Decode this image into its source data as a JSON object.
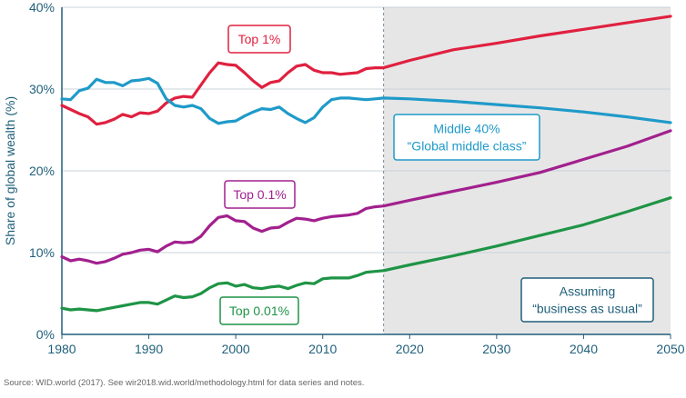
{
  "chart_data": {
    "type": "line",
    "title": "",
    "xlabel": "",
    "ylabel": "Share of global wealth (%)",
    "xlim": [
      1980,
      2050
    ],
    "ylim": [
      0,
      40
    ],
    "x_ticks": [
      "1980",
      "1990",
      "2000",
      "2010",
      "2020",
      "2030",
      "2040",
      "2050"
    ],
    "y_ticks": [
      "0%",
      "10%",
      "20%",
      "30%",
      "40%"
    ],
    "grid": "horizontal",
    "projection_start": 2017,
    "series": [
      {
        "name": "Top 1%",
        "color": "#e0203f",
        "values": [
          [
            1980,
            28.0
          ],
          [
            1981,
            27.5
          ],
          [
            1982,
            27.0
          ],
          [
            1983,
            26.6
          ],
          [
            1984,
            25.7
          ],
          [
            1985,
            25.9
          ],
          [
            1986,
            26.3
          ],
          [
            1987,
            26.9
          ],
          [
            1988,
            26.6
          ],
          [
            1989,
            27.1
          ],
          [
            1990,
            27.0
          ],
          [
            1991,
            27.3
          ],
          [
            1992,
            28.3
          ],
          [
            1993,
            28.9
          ],
          [
            1994,
            29.1
          ],
          [
            1995,
            29.0
          ],
          [
            1996,
            30.5
          ],
          [
            1997,
            32.0
          ],
          [
            1998,
            33.2
          ],
          [
            1999,
            33.0
          ],
          [
            2000,
            32.9
          ],
          [
            2001,
            32.0
          ],
          [
            2002,
            31.0
          ],
          [
            2003,
            30.2
          ],
          [
            2004,
            30.8
          ],
          [
            2005,
            31.0
          ],
          [
            2006,
            32.0
          ],
          [
            2007,
            32.8
          ],
          [
            2008,
            33.0
          ],
          [
            2009,
            32.3
          ],
          [
            2010,
            32.0
          ],
          [
            2011,
            32.0
          ],
          [
            2012,
            31.8
          ],
          [
            2013,
            31.9
          ],
          [
            2014,
            32.0
          ],
          [
            2015,
            32.5
          ],
          [
            2016,
            32.6
          ],
          [
            2017,
            32.6
          ],
          [
            2020,
            33.5
          ],
          [
            2025,
            34.8
          ],
          [
            2030,
            35.6
          ],
          [
            2035,
            36.5
          ],
          [
            2040,
            37.3
          ],
          [
            2045,
            38.1
          ],
          [
            2050,
            38.9
          ]
        ]
      },
      {
        "name": "Middle 40%",
        "color": "#1f9ac9",
        "values": [
          [
            1980,
            28.8
          ],
          [
            1981,
            28.7
          ],
          [
            1982,
            29.8
          ],
          [
            1983,
            30.1
          ],
          [
            1984,
            31.2
          ],
          [
            1985,
            30.8
          ],
          [
            1986,
            30.8
          ],
          [
            1987,
            30.4
          ],
          [
            1988,
            31.0
          ],
          [
            1989,
            31.1
          ],
          [
            1990,
            31.3
          ],
          [
            1991,
            30.7
          ],
          [
            1992,
            28.8
          ],
          [
            1993,
            28.0
          ],
          [
            1994,
            27.8
          ],
          [
            1995,
            28.0
          ],
          [
            1996,
            27.6
          ],
          [
            1997,
            26.4
          ],
          [
            1998,
            25.8
          ],
          [
            1999,
            26.0
          ],
          [
            2000,
            26.1
          ],
          [
            2001,
            26.7
          ],
          [
            2002,
            27.2
          ],
          [
            2003,
            27.6
          ],
          [
            2004,
            27.5
          ],
          [
            2005,
            27.8
          ],
          [
            2006,
            27.0
          ],
          [
            2007,
            26.4
          ],
          [
            2008,
            25.9
          ],
          [
            2009,
            26.5
          ],
          [
            2010,
            27.8
          ],
          [
            2011,
            28.7
          ],
          [
            2012,
            28.9
          ],
          [
            2013,
            28.9
          ],
          [
            2014,
            28.8
          ],
          [
            2015,
            28.7
          ],
          [
            2016,
            28.8
          ],
          [
            2017,
            28.9
          ],
          [
            2020,
            28.8
          ],
          [
            2025,
            28.5
          ],
          [
            2030,
            28.1
          ],
          [
            2035,
            27.7
          ],
          [
            2040,
            27.2
          ],
          [
            2045,
            26.6
          ],
          [
            2050,
            25.9
          ]
        ]
      },
      {
        "name": "Top 0.1%",
        "color": "#a2208e",
        "values": [
          [
            1980,
            9.5
          ],
          [
            1981,
            9.0
          ],
          [
            1982,
            9.2
          ],
          [
            1983,
            9.0
          ],
          [
            1984,
            8.7
          ],
          [
            1985,
            8.9
          ],
          [
            1986,
            9.3
          ],
          [
            1987,
            9.8
          ],
          [
            1988,
            10.0
          ],
          [
            1989,
            10.3
          ],
          [
            1990,
            10.4
          ],
          [
            1991,
            10.1
          ],
          [
            1992,
            10.8
          ],
          [
            1993,
            11.3
          ],
          [
            1994,
            11.2
          ],
          [
            1995,
            11.3
          ],
          [
            1996,
            12.0
          ],
          [
            1997,
            13.3
          ],
          [
            1998,
            14.3
          ],
          [
            1999,
            14.5
          ],
          [
            2000,
            13.9
          ],
          [
            2001,
            13.8
          ],
          [
            2002,
            13.0
          ],
          [
            2003,
            12.6
          ],
          [
            2004,
            13.0
          ],
          [
            2005,
            13.1
          ],
          [
            2006,
            13.7
          ],
          [
            2007,
            14.2
          ],
          [
            2008,
            14.1
          ],
          [
            2009,
            13.9
          ],
          [
            2010,
            14.2
          ],
          [
            2011,
            14.4
          ],
          [
            2012,
            14.5
          ],
          [
            2013,
            14.6
          ],
          [
            2014,
            14.8
          ],
          [
            2015,
            15.4
          ],
          [
            2016,
            15.6
          ],
          [
            2017,
            15.7
          ],
          [
            2020,
            16.4
          ],
          [
            2025,
            17.5
          ],
          [
            2030,
            18.6
          ],
          [
            2035,
            19.8
          ],
          [
            2040,
            21.4
          ],
          [
            2045,
            23.0
          ],
          [
            2050,
            24.9
          ]
        ]
      },
      {
        "name": "Top 0.01%",
        "color": "#1e9446",
        "values": [
          [
            1980,
            3.2
          ],
          [
            1981,
            3.0
          ],
          [
            1982,
            3.1
          ],
          [
            1983,
            3.0
          ],
          [
            1984,
            2.9
          ],
          [
            1985,
            3.1
          ],
          [
            1986,
            3.3
          ],
          [
            1987,
            3.5
          ],
          [
            1988,
            3.7
          ],
          [
            1989,
            3.9
          ],
          [
            1990,
            3.9
          ],
          [
            1991,
            3.7
          ],
          [
            1992,
            4.2
          ],
          [
            1993,
            4.7
          ],
          [
            1994,
            4.5
          ],
          [
            1995,
            4.6
          ],
          [
            1996,
            5.0
          ],
          [
            1997,
            5.7
          ],
          [
            1998,
            6.2
          ],
          [
            1999,
            6.3
          ],
          [
            2000,
            5.9
          ],
          [
            2001,
            6.1
          ],
          [
            2002,
            5.7
          ],
          [
            2003,
            5.6
          ],
          [
            2004,
            5.8
          ],
          [
            2005,
            5.9
          ],
          [
            2006,
            5.6
          ],
          [
            2007,
            6.0
          ],
          [
            2008,
            6.3
          ],
          [
            2009,
            6.2
          ],
          [
            2010,
            6.8
          ],
          [
            2011,
            6.9
          ],
          [
            2012,
            6.9
          ],
          [
            2013,
            6.9
          ],
          [
            2014,
            7.2
          ],
          [
            2015,
            7.6
          ],
          [
            2016,
            7.7
          ],
          [
            2017,
            7.8
          ],
          [
            2020,
            8.5
          ],
          [
            2025,
            9.6
          ],
          [
            2030,
            10.8
          ],
          [
            2035,
            12.1
          ],
          [
            2040,
            13.4
          ],
          [
            2045,
            15.0
          ],
          [
            2050,
            16.7
          ]
        ]
      }
    ],
    "annotations": [
      {
        "id": "top1",
        "lines": [
          "Top 1%"
        ],
        "color": "#e0203f"
      },
      {
        "id": "middle40",
        "lines": [
          "Middle 40%",
          "“Global middle class”"
        ],
        "color": "#1f9ac9"
      },
      {
        "id": "top01",
        "lines": [
          "Top 0.1%"
        ],
        "color": "#a2208e"
      },
      {
        "id": "top001",
        "lines": [
          "Top 0.01%"
        ],
        "color": "#1e9446"
      },
      {
        "id": "bau",
        "lines": [
          "Assuming",
          "“business as usual”"
        ],
        "color": "#1f5f7a"
      }
    ],
    "projection_fill": "#e6e6e6"
  },
  "source": "Source: WID.world (2017). See wir2018.wid.world/methodology.html for data series and notes."
}
